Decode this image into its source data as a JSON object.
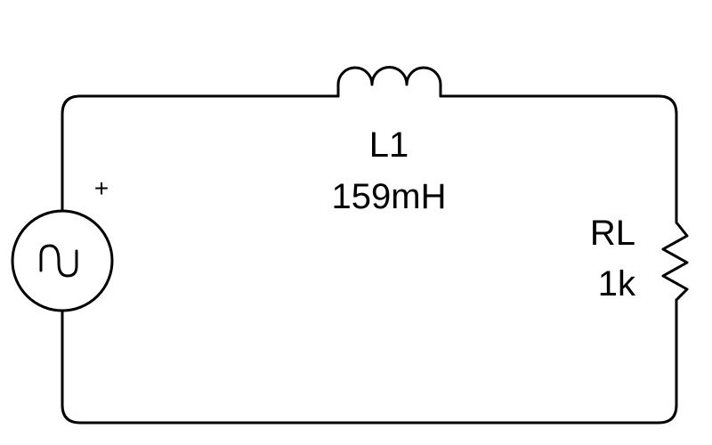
{
  "diagram": {
    "colors": {
      "stroke": "#000000",
      "text": "#000000",
      "background": "#ffffff"
    },
    "source": {
      "symbol": "ac-voltage-source",
      "polarity_label": "+"
    },
    "inductor": {
      "name": "L1",
      "value": "159mH"
    },
    "resistor": {
      "name": "RL",
      "value": "1k"
    }
  }
}
